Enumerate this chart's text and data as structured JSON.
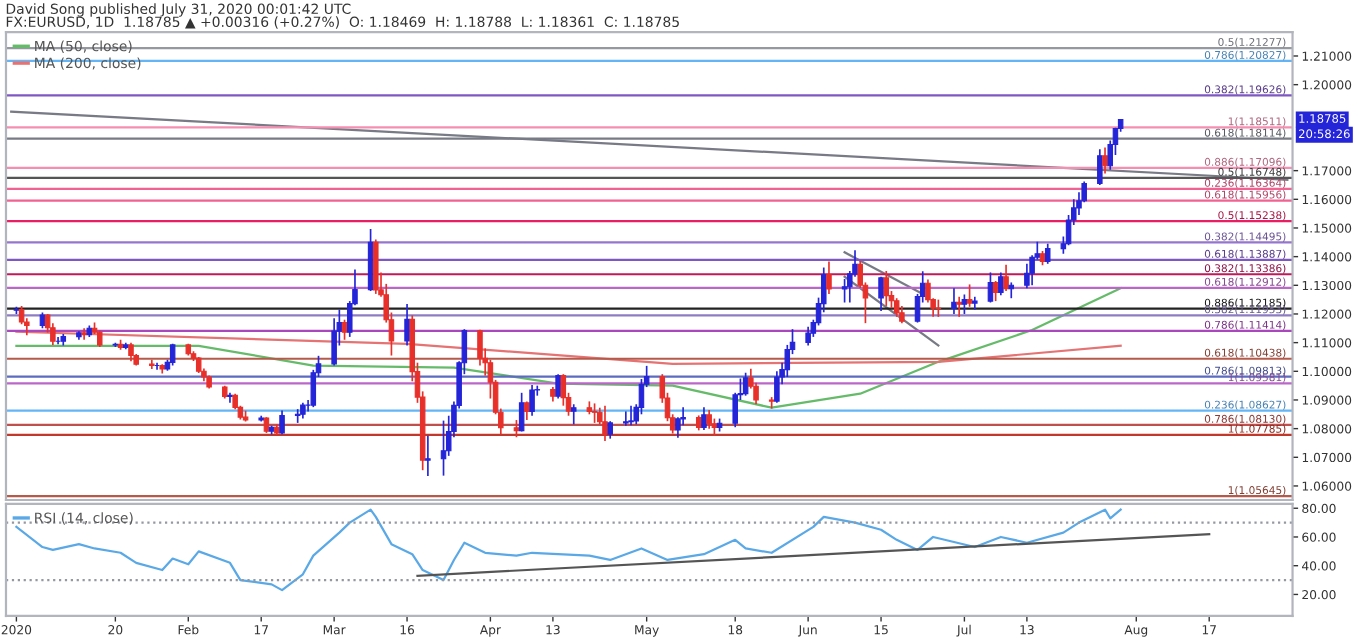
{
  "chart_data": [
    {
      "type": "candlestick",
      "title": "David Song published July 31, 2020 00:01:42 UTC",
      "subtitle": "FX:EURUSD, 1D  1.18785 ▲ +0.00316 (+0.27%)  O: 1.18469  H: 1.18788  L: 1.18361  C: 1.18785",
      "colors": [
        "#2424d8",
        "#e8302a",
        "#e8302a",
        "#2424d8",
        "#e8302a",
        "#e8302a",
        "#2424d8",
        "#2424d8",
        "#2424d8",
        "#e8302a",
        "#2424d8",
        "#e8302a",
        "#e8302a",
        "#2424d8",
        "#e8302a",
        "#2424d8",
        "#e8302a",
        "#e8302a",
        "#e8302a",
        "#2424d8",
        "#e8302a",
        "#2424d8",
        "#2424d8",
        "#e8302a",
        "#e8302a",
        "#e8302a",
        "#e8302a",
        "#e8302a",
        "#e8302a",
        "#2424d8",
        "#e8302a",
        "#e8302a",
        "#e8302a",
        "#2424d8",
        "#e8302a",
        "#2424d8",
        "#e8302a",
        "#2424d8",
        "#2424d8",
        "#2424d8",
        "#2424d8",
        "#2424d8",
        "#2424d8",
        "#2424d8",
        "#2424d8",
        "#e8302a",
        "#2424d8",
        "#2424d8",
        "#2424d8",
        "#e8302a",
        "#e8302a",
        "#e8302a",
        "#e8302a",
        "#2424d8",
        "#e8302a",
        "#e8302a",
        "#e8302a",
        "#2424d8",
        "#2424d8",
        "#2424d8",
        "#2424d8",
        "#2424d8",
        "#2424d8",
        "#e8302a",
        "#e8302a",
        "#e8302a",
        "#e8302a",
        "#e8302a",
        "#e8302a",
        "#2424d8",
        "#e8302a",
        "#2424d8",
        "#2424d8",
        "#e8302a",
        "#2424d8",
        "#e8302a",
        "#e8302a",
        "#2424d8",
        "#e8302a",
        "#e8302a",
        "#e8302a",
        "#e8302a",
        "#2424d8",
        "#2424d8",
        "#2424d8",
        "#2424d8",
        "#2424d8",
        "#2424d8",
        "#e8302a",
        "#e8302a",
        "#e8302a",
        "#2424d8",
        "#2424d8",
        "#e8302a",
        "#2424d8",
        "#e8302a",
        "#e8302a",
        "#2424d8",
        "#2424d8",
        "#2424d8",
        "#2424d8",
        "#e8302a",
        "#e8302a",
        "#e8302a",
        "#2424d8",
        "#2424d8",
        "#2424d8",
        "#2424d8",
        "#2424d8",
        "#2424d8",
        "#2424d8",
        "#2424d8",
        "#e8302a",
        "#2424d8",
        "#2424d8",
        "#2424d8",
        "#e8302a",
        "#e8302a",
        "#2424d8",
        "#e8302a",
        "#e8302a",
        "#e8302a",
        "#e8302a",
        "#2424d8",
        "#2424d8",
        "#e8302a",
        "#e8302a",
        "#e8302a",
        "#2424d8",
        "#e8302a",
        "#2424d8",
        "#e8302a",
        "#2424d8",
        "#2424d8",
        "#e8302a",
        "#2424d8",
        "#e8302a",
        "#2424d8",
        "#2424d8",
        "#2424d8",
        "#2424d8",
        "#e8302a",
        "#2424d8",
        "#2424d8",
        "#2424d8",
        "#2424d8",
        "#2424d8",
        "#2424d8",
        "#2424d8",
        "#e8302a",
        "#2424d8",
        "#2424d8",
        "#2424d8"
      ],
      "x": [
        "2020-01-01",
        "2020-01-02",
        "2020-01-03",
        "2020-01-06",
        "2020-01-07",
        "2020-01-08",
        "2020-01-09",
        "2020-01-10",
        "2020-01-13",
        "2020-01-14",
        "2020-01-15",
        "2020-01-16",
        "2020-01-17",
        "2020-01-20",
        "2020-01-21",
        "2020-01-22",
        "2020-01-23",
        "2020-01-24",
        "2020-01-27",
        "2020-01-28",
        "2020-01-29",
        "2020-01-30",
        "2020-01-31",
        "2020-02-03",
        "2020-02-04",
        "2020-02-05",
        "2020-02-06",
        "2020-02-07",
        "2020-02-10",
        "2020-02-11",
        "2020-02-12",
        "2020-02-13",
        "2020-02-14",
        "2020-02-17",
        "2020-02-18",
        "2020-02-19",
        "2020-02-20",
        "2020-02-21",
        "2020-02-24",
        "2020-02-25",
        "2020-02-26",
        "2020-02-27",
        "2020-02-28",
        "2020-03-02",
        "2020-03-03",
        "2020-03-04",
        "2020-03-05",
        "2020-03-06",
        "2020-03-09",
        "2020-03-10",
        "2020-03-11",
        "2020-03-12",
        "2020-03-13",
        "2020-03-16",
        "2020-03-17",
        "2020-03-18",
        "2020-03-19",
        "2020-03-20",
        "2020-03-23",
        "2020-03-24",
        "2020-03-25",
        "2020-03-26",
        "2020-03-27",
        "2020-03-30",
        "2020-03-31",
        "2020-04-01",
        "2020-04-02",
        "2020-04-03",
        "2020-04-06",
        "2020-04-07",
        "2020-04-08",
        "2020-04-09",
        "2020-04-10",
        "2020-04-13",
        "2020-04-14",
        "2020-04-15",
        "2020-04-16",
        "2020-04-17",
        "2020-04-20",
        "2020-04-21",
        "2020-04-22",
        "2020-04-23",
        "2020-04-24",
        "2020-04-27",
        "2020-04-28",
        "2020-04-29",
        "2020-04-30",
        "2020-05-01",
        "2020-05-04",
        "2020-05-05",
        "2020-05-06",
        "2020-05-07",
        "2020-05-08",
        "2020-05-11",
        "2020-05-12",
        "2020-05-13",
        "2020-05-14",
        "2020-05-15",
        "2020-05-18",
        "2020-05-19",
        "2020-05-20",
        "2020-05-21",
        "2020-05-22",
        "2020-05-25",
        "2020-05-26",
        "2020-05-27",
        "2020-05-28",
        "2020-05-29",
        "2020-06-01",
        "2020-06-02",
        "2020-06-03",
        "2020-06-04",
        "2020-06-05",
        "2020-06-08",
        "2020-06-09",
        "2020-06-10",
        "2020-06-11",
        "2020-06-12",
        "2020-06-15",
        "2020-06-16",
        "2020-06-17",
        "2020-06-18",
        "2020-06-19",
        "2020-06-22",
        "2020-06-23",
        "2020-06-24",
        "2020-06-25",
        "2020-06-26",
        "2020-06-29",
        "2020-06-30",
        "2020-07-01",
        "2020-07-02",
        "2020-07-03",
        "2020-07-06",
        "2020-07-07",
        "2020-07-08",
        "2020-07-09",
        "2020-07-10",
        "2020-07-13",
        "2020-07-14",
        "2020-07-15",
        "2020-07-16",
        "2020-07-17",
        "2020-07-20",
        "2020-07-21",
        "2020-07-22",
        "2020-07-23",
        "2020-07-24",
        "2020-07-27",
        "2020-07-28",
        "2020-07-29",
        "2020-07-30",
        "2020-07-31"
      ],
      "ohlc": [
        [
          1.1213,
          1.1225,
          1.12,
          1.1215
        ],
        [
          1.1215,
          1.1228,
          1.1164,
          1.1172
        ],
        [
          1.1172,
          1.1185,
          1.1126,
          1.116
        ],
        [
          1.116,
          1.1205,
          1.115,
          1.1196
        ],
        [
          1.1196,
          1.12,
          1.1135,
          1.1152
        ],
        [
          1.1152,
          1.1168,
          1.1092,
          1.1105
        ],
        [
          1.1105,
          1.112,
          1.1094,
          1.1105
        ],
        [
          1.1105,
          1.113,
          1.109,
          1.1121
        ],
        [
          1.1121,
          1.114,
          1.111,
          1.1134
        ],
        [
          1.1134,
          1.115,
          1.111,
          1.1128
        ],
        [
          1.1128,
          1.116,
          1.112,
          1.115
        ],
        [
          1.115,
          1.117,
          1.113,
          1.1136
        ],
        [
          1.1136,
          1.1142,
          1.1085,
          1.1092
        ],
        [
          1.1092,
          1.11,
          1.1085,
          1.1094
        ],
        [
          1.1094,
          1.111,
          1.1075,
          1.1083
        ],
        [
          1.1083,
          1.11,
          1.1077,
          1.1092
        ],
        [
          1.1092,
          1.11,
          1.1035,
          1.1055
        ],
        [
          1.1055,
          1.106,
          1.102,
          1.1025
        ],
        [
          1.1025,
          1.104,
          1.1008,
          1.102
        ],
        [
          1.102,
          1.103,
          1.1005,
          1.102
        ],
        [
          1.102,
          1.1025,
          1.0992,
          1.1008
        ],
        [
          1.1008,
          1.104,
          1.1002,
          1.1031
        ],
        [
          1.1031,
          1.1096,
          1.102,
          1.1092
        ],
        [
          1.1092,
          1.1096,
          1.1055,
          1.1061
        ],
        [
          1.1061,
          1.107,
          1.1036,
          1.1046
        ],
        [
          1.1046,
          1.105,
          1.0994,
          1.1
        ],
        [
          1.1,
          1.101,
          1.0965,
          1.098
        ],
        [
          1.098,
          1.0985,
          1.094,
          1.0945
        ],
        [
          1.0945,
          1.095,
          1.0905,
          1.0912
        ],
        [
          1.0912,
          1.0925,
          1.089,
          1.0916
        ],
        [
          1.0916,
          1.0922,
          1.0868,
          1.0874
        ],
        [
          1.0874,
          1.088,
          1.0832,
          1.084
        ],
        [
          1.084,
          1.0862,
          1.0825,
          1.083
        ],
        [
          1.083,
          1.0845,
          1.0825,
          1.0837
        ],
        [
          1.0837,
          1.084,
          1.0785,
          1.0791
        ],
        [
          1.0791,
          1.081,
          1.078,
          1.0805
        ],
        [
          1.0805,
          1.0815,
          1.0778,
          1.0785
        ],
        [
          1.0785,
          1.0863,
          1.078,
          1.0846
        ],
        [
          1.0846,
          1.0868,
          1.082,
          1.085
        ],
        [
          1.085,
          1.089,
          1.0835,
          1.0882
        ],
        [
          1.0882,
          1.09,
          1.086,
          1.0882
        ],
        [
          1.0882,
          1.1005,
          1.0875,
          1.0995
        ],
        [
          1.0995,
          1.1054,
          1.098,
          1.1026
        ],
        [
          1.1026,
          1.1185,
          1.102,
          1.114
        ],
        [
          1.114,
          1.1215,
          1.109,
          1.117
        ],
        [
          1.117,
          1.118,
          1.111,
          1.1136
        ],
        [
          1.1136,
          1.1245,
          1.112,
          1.1236
        ],
        [
          1.1236,
          1.1355,
          1.123,
          1.1285
        ],
        [
          1.1285,
          1.1496,
          1.128,
          1.145
        ],
        [
          1.145,
          1.146,
          1.127,
          1.1284
        ],
        [
          1.1284,
          1.1345,
          1.126,
          1.1267
        ],
        [
          1.1267,
          1.1305,
          1.117,
          1.118
        ],
        [
          1.118,
          1.1205,
          1.1055,
          1.1106
        ],
        [
          1.1106,
          1.1235,
          1.109,
          1.1181
        ],
        [
          1.1181,
          1.1195,
          1.0965,
          1.0999
        ],
        [
          1.0999,
          1.103,
          1.089,
          1.091
        ],
        [
          1.091,
          1.093,
          1.0655,
          1.069
        ],
        [
          1.069,
          1.0775,
          1.0635,
          1.0695
        ],
        [
          1.0695,
          1.0828,
          1.0636,
          1.0723
        ],
        [
          1.0723,
          1.0845,
          1.0705,
          1.079
        ],
        [
          1.079,
          1.0895,
          1.077,
          1.0881
        ],
        [
          1.0881,
          1.1035,
          1.087,
          1.103
        ],
        [
          1.103,
          1.1147,
          1.099,
          1.1142
        ],
        [
          1.1142,
          1.1145,
          1.102,
          1.1045
        ],
        [
          1.1045,
          1.108,
          1.0985,
          1.103
        ],
        [
          1.103,
          1.104,
          1.0905,
          1.0962
        ],
        [
          1.0962,
          1.097,
          1.085,
          1.0857
        ],
        [
          1.0857,
          1.087,
          1.078,
          1.0803
        ],
        [
          1.0803,
          1.083,
          1.077,
          1.0793
        ],
        [
          1.0793,
          1.0925,
          1.079,
          1.089
        ],
        [
          1.089,
          1.0895,
          1.083,
          1.086
        ],
        [
          1.086,
          1.0952,
          1.0845,
          1.0935
        ],
        [
          1.0935,
          1.095,
          1.0915,
          1.0936
        ],
        [
          1.0936,
          1.0945,
          1.0895,
          1.0913
        ],
        [
          1.0913,
          1.099,
          1.0905,
          1.0985
        ],
        [
          1.0985,
          1.099,
          1.088,
          1.0908
        ],
        [
          1.0908,
          1.0925,
          1.0845,
          1.0861
        ],
        [
          1.0861,
          1.0885,
          1.0815,
          1.0873
        ],
        [
          1.0873,
          1.0895,
          1.085,
          1.086
        ],
        [
          1.086,
          1.0888,
          1.082,
          1.0857
        ],
        [
          1.0857,
          1.0873,
          1.0815,
          1.0824
        ],
        [
          1.0824,
          1.088,
          1.0757,
          1.0781
        ],
        [
          1.0781,
          1.0826,
          1.0765,
          1.082
        ],
        [
          1.082,
          1.086,
          1.081,
          1.0824
        ],
        [
          1.0824,
          1.088,
          1.0812,
          1.0827
        ],
        [
          1.0827,
          1.0885,
          1.0815,
          1.0874
        ],
        [
          1.0874,
          1.0973,
          1.085,
          1.0955
        ],
        [
          1.0955,
          1.1019,
          1.0945,
          1.0982
        ],
        [
          1.0982,
          1.099,
          1.089,
          1.0907
        ],
        [
          1.0907,
          1.0925,
          1.0826,
          1.0838
        ],
        [
          1.0838,
          1.085,
          1.0783,
          1.0795
        ],
        [
          1.0795,
          1.084,
          1.0768,
          1.0834
        ],
        [
          1.0834,
          1.0875,
          1.0812,
          1.0839
        ],
        [
          1.0839,
          1.0846,
          1.0794,
          1.0804
        ],
        [
          1.0804,
          1.0875,
          1.0795,
          1.0848
        ],
        [
          1.0848,
          1.0865,
          1.08,
          1.0817
        ],
        [
          1.0817,
          1.0835,
          1.0775,
          1.0804
        ],
        [
          1.0804,
          1.0835,
          1.079,
          1.0819
        ],
        [
          1.0819,
          1.0925,
          1.0805,
          1.0918
        ],
        [
          1.0918,
          1.0975,
          1.09,
          1.0922
        ],
        [
          1.0922,
          1.0995,
          1.0915,
          1.0977
        ],
        [
          1.0977,
          1.1009,
          1.094,
          1.0948
        ],
        [
          1.0948,
          1.096,
          1.0885,
          1.09
        ],
        [
          1.09,
          1.091,
          1.087,
          1.0896
        ],
        [
          1.0896,
          1.1,
          1.089,
          1.098
        ],
        [
          1.098,
          1.103,
          1.0955,
          1.1006
        ],
        [
          1.1006,
          1.1092,
          1.098,
          1.1076
        ],
        [
          1.1076,
          1.1147,
          1.106,
          1.1101
        ],
        [
          1.1101,
          1.1155,
          1.109,
          1.1133
        ],
        [
          1.1133,
          1.118,
          1.112,
          1.117
        ],
        [
          1.117,
          1.1257,
          1.116,
          1.1236
        ],
        [
          1.1236,
          1.1362,
          1.1206,
          1.1337
        ],
        [
          1.1337,
          1.1383,
          1.127,
          1.1287
        ],
        [
          1.1287,
          1.1322,
          1.124,
          1.1295
        ],
        [
          1.1295,
          1.135,
          1.124,
          1.134
        ],
        [
          1.134,
          1.1422,
          1.133,
          1.1373
        ],
        [
          1.1373,
          1.1385,
          1.129,
          1.13
        ],
        [
          1.13,
          1.131,
          1.1168,
          1.1256
        ],
        [
          1.1256,
          1.133,
          1.121,
          1.1326
        ],
        [
          1.1326,
          1.135,
          1.1228,
          1.1264
        ],
        [
          1.1264,
          1.128,
          1.122,
          1.1246
        ],
        [
          1.1246,
          1.1255,
          1.119,
          1.1204
        ],
        [
          1.1204,
          1.1228,
          1.1168,
          1.1175
        ],
        [
          1.1175,
          1.127,
          1.117,
          1.1261
        ],
        [
          1.1261,
          1.1349,
          1.124,
          1.1307
        ],
        [
          1.1307,
          1.132,
          1.124,
          1.125
        ],
        [
          1.125,
          1.1255,
          1.119,
          1.122
        ],
        [
          1.122,
          1.125,
          1.119,
          1.1219
        ],
        [
          1.1219,
          1.129,
          1.12,
          1.1241
        ],
        [
          1.1241,
          1.126,
          1.119,
          1.1234
        ],
        [
          1.1234,
          1.1268,
          1.12,
          1.125
        ],
        [
          1.125,
          1.1303,
          1.1225,
          1.1238
        ],
        [
          1.1238,
          1.126,
          1.1215,
          1.1245
        ],
        [
          1.1245,
          1.1345,
          1.124,
          1.131
        ],
        [
          1.131,
          1.1315,
          1.1245,
          1.1275
        ],
        [
          1.1275,
          1.1345,
          1.1265,
          1.133
        ],
        [
          1.133,
          1.1372,
          1.128,
          1.1288
        ],
        [
          1.1288,
          1.131,
          1.1255,
          1.13
        ],
        [
          1.13,
          1.1375,
          1.129,
          1.1342
        ],
        [
          1.1342,
          1.1405,
          1.13,
          1.1398
        ],
        [
          1.1398,
          1.1452,
          1.139,
          1.141
        ],
        [
          1.141,
          1.142,
          1.137,
          1.1383
        ],
        [
          1.1383,
          1.1445,
          1.1375,
          1.1428
        ],
        [
          1.1428,
          1.147,
          1.141,
          1.1445
        ],
        [
          1.1445,
          1.1545,
          1.144,
          1.1528
        ],
        [
          1.1528,
          1.16,
          1.151,
          1.157
        ],
        [
          1.157,
          1.1625,
          1.1545,
          1.1595
        ],
        [
          1.1595,
          1.1662,
          1.159,
          1.1655
        ],
        [
          1.1655,
          1.1775,
          1.165,
          1.1752
        ],
        [
          1.1752,
          1.1781,
          1.169,
          1.1717
        ],
        [
          1.1717,
          1.1805,
          1.1703,
          1.1791
        ],
        [
          1.1791,
          1.185,
          1.1755,
          1.18469
        ],
        [
          1.18469,
          1.18788,
          1.18361,
          1.18785
        ]
      ],
      "series": [
        {
          "name": "MA (50, close)",
          "type": "line",
          "color": "#66bb6a",
          "x": [
            "2020-01-01",
            "2020-02-05",
            "2020-02-27",
            "2020-03-25",
            "2020-04-14",
            "2020-05-06",
            "2020-05-25",
            "2020-06-11",
            "2020-06-26",
            "2020-07-14",
            "2020-07-31"
          ],
          "values": [
            1.1089,
            1.1089,
            1.102,
            1.1013,
            1.0957,
            1.095,
            1.0873,
            1.0922,
            1.1033,
            1.1144,
            1.129
          ]
        },
        {
          "name": "MA (200, close)",
          "type": "line",
          "color": "#e57373",
          "x": [
            "2020-01-01",
            "2020-03-16",
            "2020-05-06",
            "2020-06-26",
            "2020-07-31"
          ],
          "values": [
            1.1138,
            1.1096,
            1.1026,
            1.1033,
            1.1089
          ]
        },
        {
          "type": "line",
          "color": "#787b86",
          "x": [
            "2019-12-31",
            "2020-09-01"
          ],
          "values": [
            1.1906,
            1.1668
          ]
        },
        {
          "type": "line",
          "color": "#787b86",
          "x": [
            "2020-06-08",
            "2020-06-23"
          ],
          "values": [
            1.1415,
            1.127
          ]
        },
        {
          "type": "line",
          "color": "#787b86",
          "x": [
            "2020-06-08",
            "2020-06-26"
          ],
          "values": [
            1.133,
            1.109
          ]
        }
      ],
      "ref_lines": [
        {
          "axis": "y",
          "value": 1.21277,
          "label": "0.5(1.21277)",
          "color": "#9598a1"
        },
        {
          "axis": "y",
          "value": 1.20827,
          "label": "0.786(1.20827)",
          "color": "#64b5f6"
        },
        {
          "axis": "y",
          "value": 1.19626,
          "label": "0.382(1.19626)",
          "color": "#7e57c2"
        },
        {
          "axis": "y",
          "value": 1.18511,
          "label": "1(1.18511)",
          "color": "#f48fb1"
        },
        {
          "axis": "y",
          "value": 1.18114,
          "label": "0.618(1.18114)",
          "color": "#787b86"
        },
        {
          "axis": "y",
          "value": 1.17096,
          "label": "0.886(1.17096)",
          "color": "#f48fb1"
        },
        {
          "axis": "y",
          "value": 1.16748,
          "label": "0.5(1.16748)",
          "color": "#555555"
        },
        {
          "axis": "y",
          "value": 1.16364,
          "label": "0.236(1.16364)",
          "color": "#f06292"
        },
        {
          "axis": "y",
          "value": 1.15956,
          "label": "0.618(1.15956)",
          "color": "#f06292"
        },
        {
          "axis": "y",
          "value": 1.15238,
          "label": "0.5(1.15238)",
          "color": "#e91e63"
        },
        {
          "axis": "y",
          "value": 1.14495,
          "label": "0.382(1.14495)",
          "color": "#9575cd"
        },
        {
          "axis": "y",
          "value": 1.13887,
          "label": "0.618(1.13887)",
          "color": "#7e57c2"
        },
        {
          "axis": "y",
          "value": 1.13386,
          "label": "0.382(1.13386)",
          "color": "#c2185b"
        },
        {
          "axis": "y",
          "value": 1.12912,
          "label": "0.618(1.12912)",
          "color": "#ba68c8"
        },
        {
          "axis": "y",
          "value": 1.12185,
          "label": "0.886(1.12185)",
          "color": "#222222"
        },
        {
          "axis": "y",
          "value": 1.11953,
          "label": "0.382(1.11953)",
          "color": "#8e7cc3"
        },
        {
          "axis": "y",
          "value": 1.11414,
          "label": "0.786(1.11414)",
          "color": "#ab47bc"
        },
        {
          "axis": "y",
          "value": 1.10438,
          "label": "0.618(1.10438)",
          "color": "#b55a4a"
        },
        {
          "axis": "y",
          "value": 1.09813,
          "label": "0.786(1.09813)",
          "color": "#5c6bc0"
        },
        {
          "axis": "y",
          "value": 1.09581,
          "label": "1(1.09581)",
          "color": "#ba68c8"
        },
        {
          "axis": "y",
          "value": 1.08627,
          "label": "0.236(1.08627)",
          "color": "#64b5f6"
        },
        {
          "axis": "y",
          "value": 1.0813,
          "label": "0.786(1.08130)",
          "color": "#c0504d"
        },
        {
          "axis": "y",
          "value": 1.07785,
          "label": "1(1.07785)",
          "color": "#c0392b"
        },
        {
          "axis": "y",
          "value": 1.05645,
          "label": "1(1.05645)",
          "color": "#b55a4a"
        }
      ],
      "annotations": [
        "1.18785",
        "20:58:26"
      ],
      "xlim": [
        "2019-12-30",
        "2020-09-02"
      ],
      "ylim": [
        1.0551,
        1.2183
      ],
      "yticks": [
        {
          "value": 1.06,
          "label": "1.06000"
        },
        {
          "value": 1.07,
          "label": "1.07000"
        },
        {
          "value": 1.08,
          "label": "1.08000"
        },
        {
          "value": 1.09,
          "label": "1.09000"
        },
        {
          "value": 1.1,
          "label": "1.10000"
        },
        {
          "value": 1.11,
          "label": "1.11000"
        },
        {
          "value": 1.12,
          "label": "1.12000"
        },
        {
          "value": 1.13,
          "label": "1.13000"
        },
        {
          "value": 1.14,
          "label": "1.14000"
        },
        {
          "value": 1.15,
          "label": "1.15000"
        },
        {
          "value": 1.16,
          "label": "1.16000"
        },
        {
          "value": 1.17,
          "label": "1.17000"
        },
        {
          "value": 1.2,
          "label": "1.20000"
        },
        {
          "value": 1.21,
          "label": "1.21000"
        }
      ],
      "legend": "top left"
    },
    {
      "type": "line",
      "series": [
        {
          "name": "RSI (14, close)",
          "color": "#5aa9e6",
          "x": [
            "2020-01-01",
            "2020-01-06",
            "2020-01-08",
            "2020-01-13",
            "2020-01-16",
            "2020-01-21",
            "2020-01-24",
            "2020-01-29",
            "2020-01-31",
            "2020-02-03",
            "2020-02-05",
            "2020-02-11",
            "2020-02-13",
            "2020-02-19",
            "2020-02-21",
            "2020-02-25",
            "2020-02-27",
            "2020-03-03",
            "2020-03-05",
            "2020-03-09",
            "2020-03-10",
            "2020-03-13",
            "2020-03-17",
            "2020-03-19",
            "2020-03-23",
            "2020-03-25",
            "2020-03-27",
            "2020-03-31",
            "2020-04-06",
            "2020-04-09",
            "2020-04-14",
            "2020-04-20",
            "2020-04-24",
            "2020-04-30",
            "2020-05-05",
            "2020-05-12",
            "2020-05-18",
            "2020-05-20",
            "2020-05-25",
            "2020-06-02",
            "2020-06-04",
            "2020-06-10",
            "2020-06-15",
            "2020-06-18",
            "2020-06-22",
            "2020-06-25",
            "2020-07-03",
            "2020-07-08",
            "2020-07-13",
            "2020-07-20",
            "2020-07-23",
            "2020-07-28",
            "2020-07-29",
            "2020-07-31"
          ],
          "values": [
            67,
            53,
            51,
            55,
            52,
            49,
            42,
            37,
            45,
            41,
            50,
            42,
            30,
            27,
            23,
            34,
            47,
            63,
            70,
            79,
            74,
            55,
            48,
            37,
            30,
            44,
            56,
            49,
            47,
            49,
            48,
            47,
            44,
            52,
            44,
            48,
            58,
            52,
            49,
            67,
            74,
            70,
            65,
            58,
            51,
            60,
            53,
            60,
            56,
            63,
            70,
            79,
            73,
            79
          ]
        },
        {
          "type": "line",
          "color": "#555555",
          "x": [
            "2020-03-18",
            "2020-08-17"
          ],
          "values": [
            33,
            62
          ]
        }
      ],
      "ref_lines": [
        {
          "axis": "y",
          "value": 70,
          "color": "#9598a1",
          "line_style": "dotted"
        },
        {
          "axis": "y",
          "value": 30,
          "color": "#9598a1",
          "line_style": "dotted"
        }
      ],
      "xlim": [
        "2019-12-30",
        "2020-09-02"
      ],
      "xticks": [
        {
          "value": "2020-01-01",
          "label": "2020"
        },
        {
          "value": "2020-01-20",
          "label": "20"
        },
        {
          "value": "2020-02-03",
          "label": "Feb"
        },
        {
          "value": "2020-02-17",
          "label": "17"
        },
        {
          "value": "2020-03-02",
          "label": "Mar"
        },
        {
          "value": "2020-03-16",
          "label": "16"
        },
        {
          "value": "2020-04-01",
          "label": "Apr"
        },
        {
          "value": "2020-04-13",
          "label": "13"
        },
        {
          "value": "2020-05-01",
          "label": "May"
        },
        {
          "value": "2020-05-18",
          "label": "18"
        },
        {
          "value": "2020-06-01",
          "label": "Jun"
        },
        {
          "value": "2020-06-15",
          "label": "15"
        },
        {
          "value": "2020-07-01",
          "label": "Jul"
        },
        {
          "value": "2020-07-13",
          "label": "13"
        },
        {
          "value": "2020-08-03",
          "label": "Aug"
        },
        {
          "value": "2020-08-17",
          "label": "17"
        }
      ],
      "ylim": [
        5,
        83
      ],
      "yticks": [
        {
          "value": 20,
          "label": "20.00"
        },
        {
          "value": 40,
          "label": "40.00"
        },
        {
          "value": 60,
          "label": "60.00"
        },
        {
          "value": 80,
          "label": "80.00"
        }
      ],
      "legend": "top left"
    }
  ]
}
